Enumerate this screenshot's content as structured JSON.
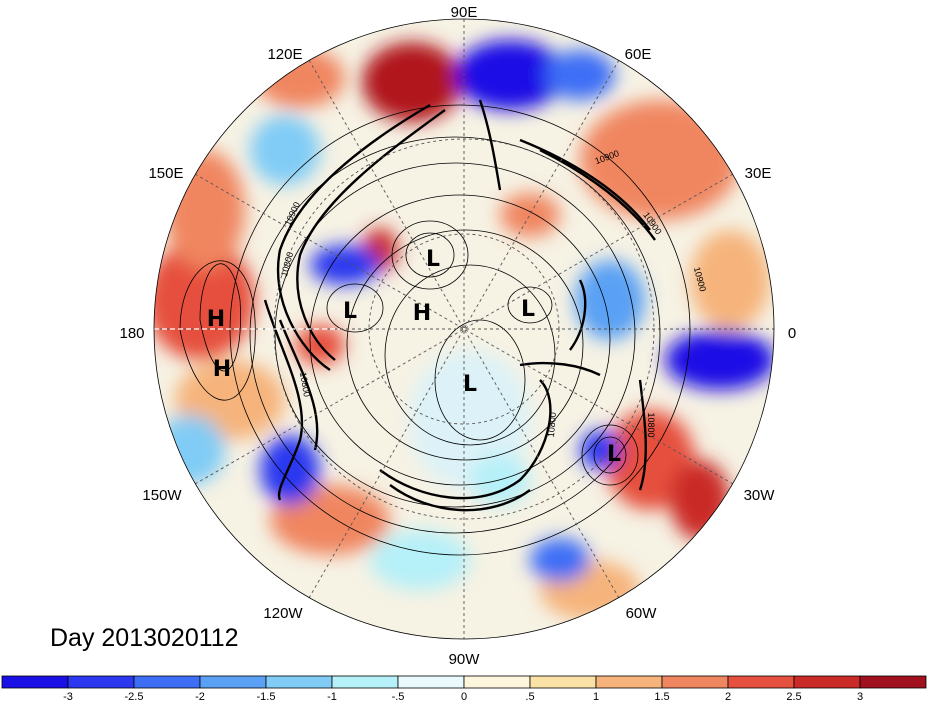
{
  "map": {
    "projection": "north-polar-stereographic",
    "longitude_labels": [
      {
        "text": "90E",
        "lon": 90
      },
      {
        "text": "60E",
        "lon": 60
      },
      {
        "text": "30E",
        "lon": 30
      },
      {
        "text": "0",
        "lon": 0
      },
      {
        "text": "30W",
        "lon": -30
      },
      {
        "text": "60W",
        "lon": -60
      },
      {
        "text": "90W",
        "lon": -90
      },
      {
        "text": "120W",
        "lon": -120
      },
      {
        "text": "150W",
        "lon": -150
      },
      {
        "text": "180",
        "lon": 180
      },
      {
        "text": "150E",
        "lon": 150
      },
      {
        "text": "120E",
        "lon": 120
      }
    ],
    "pressure_centers": [
      {
        "label": "L",
        "name": "low-center-1"
      },
      {
        "label": "L",
        "name": "low-center-2"
      },
      {
        "label": "H",
        "name": "high-center-1"
      },
      {
        "label": "L",
        "name": "low-center-3"
      },
      {
        "label": "H",
        "name": "high-center-2"
      },
      {
        "label": "H",
        "name": "high-center-3"
      },
      {
        "label": "L",
        "name": "low-center-4"
      },
      {
        "label": "L",
        "name": "low-center-5"
      }
    ],
    "contour_labels": [
      "10900",
      "10900",
      "10900",
      "10800",
      "10900",
      "10800",
      "10800",
      "10800"
    ],
    "date_label": "Day 2013020112"
  },
  "colorbar": {
    "colors": [
      "#1a10e6",
      "#2c38f0",
      "#3e6ef6",
      "#5aa0f4",
      "#80ccf6",
      "#b6f0f8",
      "#eafafc",
      "#fdf6dc",
      "#fae2a6",
      "#f6b47c",
      "#f08660",
      "#e6503e",
      "#ca2a28",
      "#a0101e"
    ],
    "tick_labels": [
      "-3",
      "-2.5",
      "-2",
      "-1.5",
      "-1",
      "-.5",
      "0",
      ".5",
      "1",
      "1.5",
      "2",
      "2.5",
      "3"
    ]
  }
}
